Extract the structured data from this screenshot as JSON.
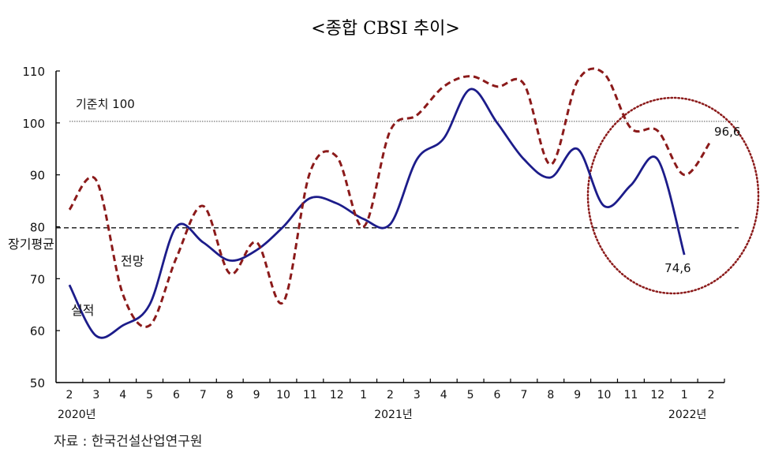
{
  "header": {
    "title": "<종합 CBSI 추이>"
  },
  "footer": {
    "source": "자료 : 한국건설산업연구원"
  },
  "colors": {
    "actual": "#1c1c8a",
    "forecast": "#8b1a1a",
    "circle": "#8b1a1a",
    "axis": "#000000"
  },
  "chart_data": {
    "type": "line",
    "title": "<종합 CBSI 추이>",
    "xlabel": "",
    "ylabel": "",
    "ylim": [
      50,
      110
    ],
    "yticks": [
      50,
      60,
      70,
      80,
      90,
      100,
      110
    ],
    "categories": [
      "2",
      "3",
      "4",
      "5",
      "6",
      "7",
      "8",
      "9",
      "10",
      "11",
      "12",
      "1",
      "2",
      "3",
      "4",
      "5",
      "6",
      "7",
      "8",
      "9",
      "10",
      "11",
      "12",
      "1",
      "2"
    ],
    "year_labels": [
      {
        "index": 0,
        "label": "2020년"
      },
      {
        "index": 12,
        "label": "2021년"
      },
      {
        "index": 23,
        "label": "2022년"
      }
    ],
    "series": [
      {
        "name": "실적",
        "style": "solid",
        "values": [
          68.8,
          59,
          61,
          65,
          80,
          77,
          73.5,
          75.5,
          80,
          85.5,
          84.5,
          81.5,
          80.5,
          93,
          97,
          106.5,
          100,
          93,
          89.5,
          95,
          84,
          88,
          93,
          74.6,
          null
        ]
      },
      {
        "name": "전망",
        "style": "dashed",
        "values": [
          83.3,
          89,
          67,
          61,
          74,
          84,
          71,
          77,
          65.5,
          90.5,
          93.5,
          80,
          98.5,
          101.5,
          107,
          109,
          107,
          107.5,
          92,
          108,
          109.5,
          99,
          98.5,
          90,
          96.6
        ]
      }
    ],
    "reference_lines": [
      {
        "value": 100.3,
        "label": "기준치 100",
        "style": "dotted"
      },
      {
        "value": 79.8,
        "label": "장기평균",
        "style": "dashed"
      }
    ],
    "annotations": [
      {
        "text": "96.6",
        "series": "전망",
        "index": 24
      },
      {
        "text": "74.6",
        "series": "실적",
        "index": 23
      },
      {
        "text": "전망",
        "type": "series-label"
      },
      {
        "text": "실적",
        "type": "series-label"
      }
    ],
    "grid": false,
    "legend": "inline labels"
  }
}
